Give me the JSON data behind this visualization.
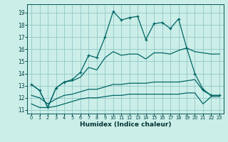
{
  "xlabel": "Humidex (Indice chaleur)",
  "bg_color": "#cceee8",
  "grid_color": "#99cccc",
  "line_color": "#006666",
  "x": [
    0,
    1,
    2,
    3,
    4,
    5,
    6,
    7,
    8,
    9,
    10,
    11,
    12,
    13,
    14,
    15,
    16,
    17,
    18,
    19,
    20,
    21,
    22,
    23
  ],
  "line_top": [
    13.1,
    12.6,
    11.2,
    12.8,
    13.3,
    13.5,
    14.1,
    15.5,
    15.3,
    17.0,
    19.1,
    18.4,
    18.6,
    18.7,
    16.8,
    18.1,
    18.2,
    17.7,
    18.5,
    16.1,
    14.0,
    12.7,
    12.2,
    12.2
  ],
  "line_upper": [
    13.1,
    12.6,
    11.2,
    12.8,
    13.3,
    13.4,
    13.7,
    14.5,
    14.3,
    15.3,
    15.8,
    15.5,
    15.6,
    15.6,
    15.2,
    15.7,
    15.7,
    15.6,
    15.9,
    16.1,
    15.8,
    15.7,
    15.6,
    15.6
  ],
  "line_mid": [
    12.2,
    12.0,
    11.5,
    11.9,
    12.2,
    12.3,
    12.5,
    12.7,
    12.7,
    12.9,
    13.1,
    13.1,
    13.2,
    13.2,
    13.2,
    13.3,
    13.3,
    13.3,
    13.3,
    13.4,
    13.5,
    12.6,
    12.2,
    12.2
  ],
  "line_bot": [
    11.5,
    11.2,
    11.2,
    11.3,
    11.5,
    11.7,
    11.9,
    12.0,
    12.0,
    12.1,
    12.2,
    12.2,
    12.3,
    12.3,
    12.3,
    12.3,
    12.3,
    12.3,
    12.3,
    12.4,
    12.4,
    11.5,
    12.1,
    12.1
  ],
  "yticks": [
    11,
    12,
    13,
    14,
    15,
    16,
    17,
    18,
    19
  ],
  "ylim_min": 10.7,
  "ylim_max": 19.7
}
